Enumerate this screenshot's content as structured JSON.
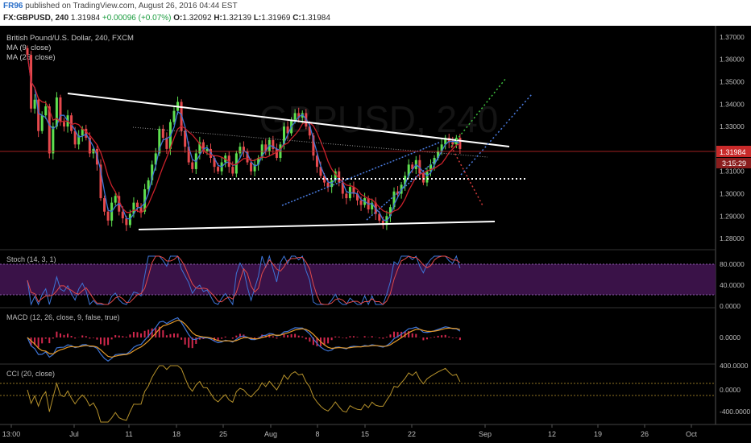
{
  "header": {
    "user": "FR96",
    "published": "published on TradingView.com, August 26, 2016 04:44 EST",
    "symbol": "FX:GBPUSD, 240",
    "last": "1.31984",
    "change": "+0.00096 (+0.07%)",
    "o_label": "O:",
    "o": "1.32092",
    "h_label": "H:",
    "h": "1.32139",
    "l_label": "L:",
    "l": "1.31969",
    "c_label": "C:",
    "c": "1.31984"
  },
  "legend": {
    "instrument": "British Pound/U.S. Dollar, 240, FXCM",
    "ma1": "MA (9, close)",
    "ma2": "MA (25, close)",
    "watermark": "GBPUSD, 240"
  },
  "colors": {
    "up": "#5ee04f",
    "down": "#e6494d",
    "ma_fast": "#3d74d6",
    "ma_slow": "#c9202a",
    "trendline": "#ffffff",
    "stoch_band": "#3a1248",
    "stoch_k": "#3d74d6",
    "stoch_d": "#e24a4a",
    "macd_line": "#3d74d6",
    "signal_line": "#e59a2a",
    "hist": "#d2284d",
    "cci": "#b5912b",
    "price_badge": "#c92a2a"
  },
  "price_axis": {
    "ticks": [
      "1.37000",
      "1.36000",
      "1.35000",
      "1.34000",
      "1.33000",
      "1.32000",
      "1.31000",
      "1.30000",
      "1.29000",
      "1.28000"
    ],
    "current": "1.31984",
    "countdown": "3:15:29"
  },
  "stoch": {
    "title": "Stoch (14, 3, 1)",
    "ticks": [
      "80.0000",
      "40.0000",
      "0.0000"
    ]
  },
  "macd": {
    "title": "MACD (12, 26, close, 9, false, true)",
    "ticks": [
      "0.0000"
    ]
  },
  "cci": {
    "title": "CCI (20, close)",
    "ticks": [
      "400.0000",
      "0.0000",
      "-400.0000"
    ]
  },
  "time_axis": [
    "13:00",
    "Jul",
    "11",
    "18",
    "25",
    "Aug",
    "8",
    "15",
    "22",
    "Sep",
    "12",
    "19",
    "26",
    "Oct"
  ],
  "chart_data": {
    "type": "candlestick",
    "ylim": [
      1.275,
      1.375
    ],
    "close_series": [
      1.362,
      1.338,
      1.342,
      1.328,
      1.335,
      1.339,
      1.318,
      1.33,
      1.343,
      1.332,
      1.33,
      1.335,
      1.328,
      1.322,
      1.326,
      1.329,
      1.325,
      1.318,
      1.32,
      1.313,
      1.298,
      1.292,
      1.288,
      1.296,
      1.299,
      1.292,
      1.289,
      1.286,
      1.291,
      1.296,
      1.294,
      1.292,
      1.302,
      1.306,
      1.313,
      1.318,
      1.329,
      1.325,
      1.32,
      1.332,
      1.337,
      1.341,
      1.328,
      1.321,
      1.314,
      1.311,
      1.318,
      1.323,
      1.319,
      1.32,
      1.316,
      1.312,
      1.31,
      1.314,
      1.317,
      1.312,
      1.309,
      1.318,
      1.321,
      1.319,
      1.314,
      1.31,
      1.313,
      1.316,
      1.322,
      1.319,
      1.324,
      1.32,
      1.316,
      1.322,
      1.33,
      1.327,
      1.333,
      1.336,
      1.334,
      1.336,
      1.33,
      1.326,
      1.317,
      1.312,
      1.308,
      1.305,
      1.303,
      1.306,
      1.31,
      1.305,
      1.3,
      1.298,
      1.303,
      1.3,
      1.297,
      1.295,
      1.298,
      1.293,
      1.296,
      1.291,
      1.288,
      1.286,
      1.29,
      1.294,
      1.301,
      1.3,
      1.304,
      1.308,
      1.313,
      1.311,
      1.315,
      1.309,
      1.305,
      1.31,
      1.313,
      1.316,
      1.319,
      1.322,
      1.325,
      1.323,
      1.322,
      1.325,
      1.32
    ]
  }
}
